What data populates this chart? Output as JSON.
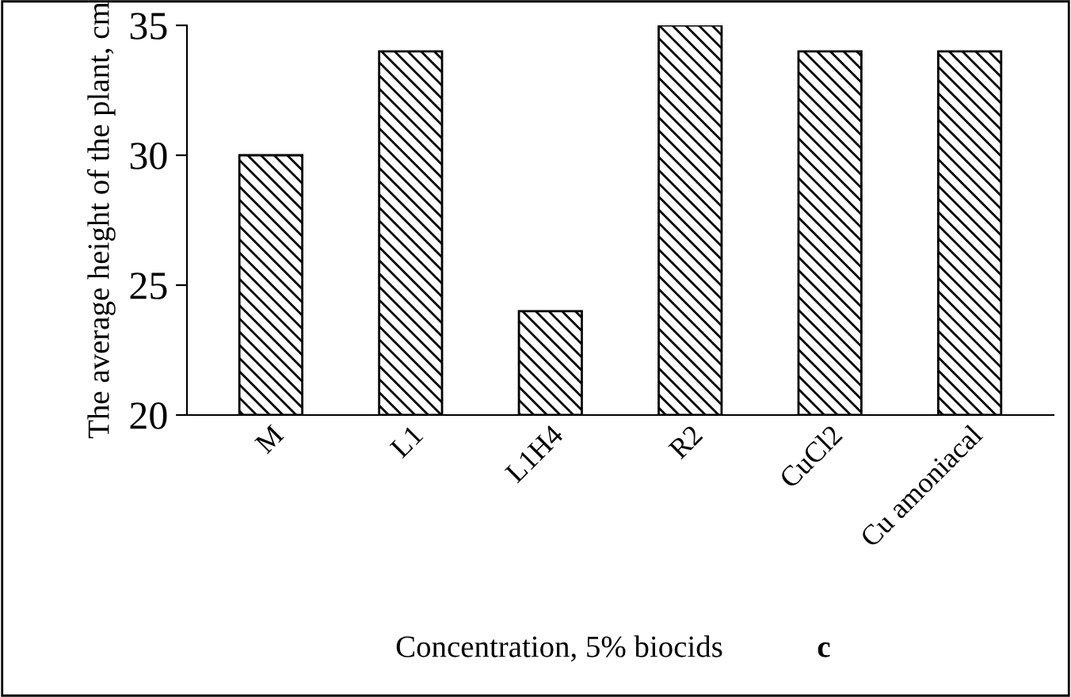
{
  "chart_data": {
    "type": "bar",
    "xlabel": "Concentration, 5% biocids",
    "ylabel": "The average height of the plant, cm",
    "categories": [
      "M",
      "L1",
      "L1H4",
      "R2",
      "CuCl2",
      "Cu amoniacal"
    ],
    "values": [
      30,
      34,
      24,
      35,
      34,
      34
    ],
    "color": "#000000",
    "ylim": [
      20,
      35
    ],
    "yticks": [
      20,
      25,
      30,
      35
    ],
    "grid": false,
    "annotations": [
      "c"
    ]
  }
}
